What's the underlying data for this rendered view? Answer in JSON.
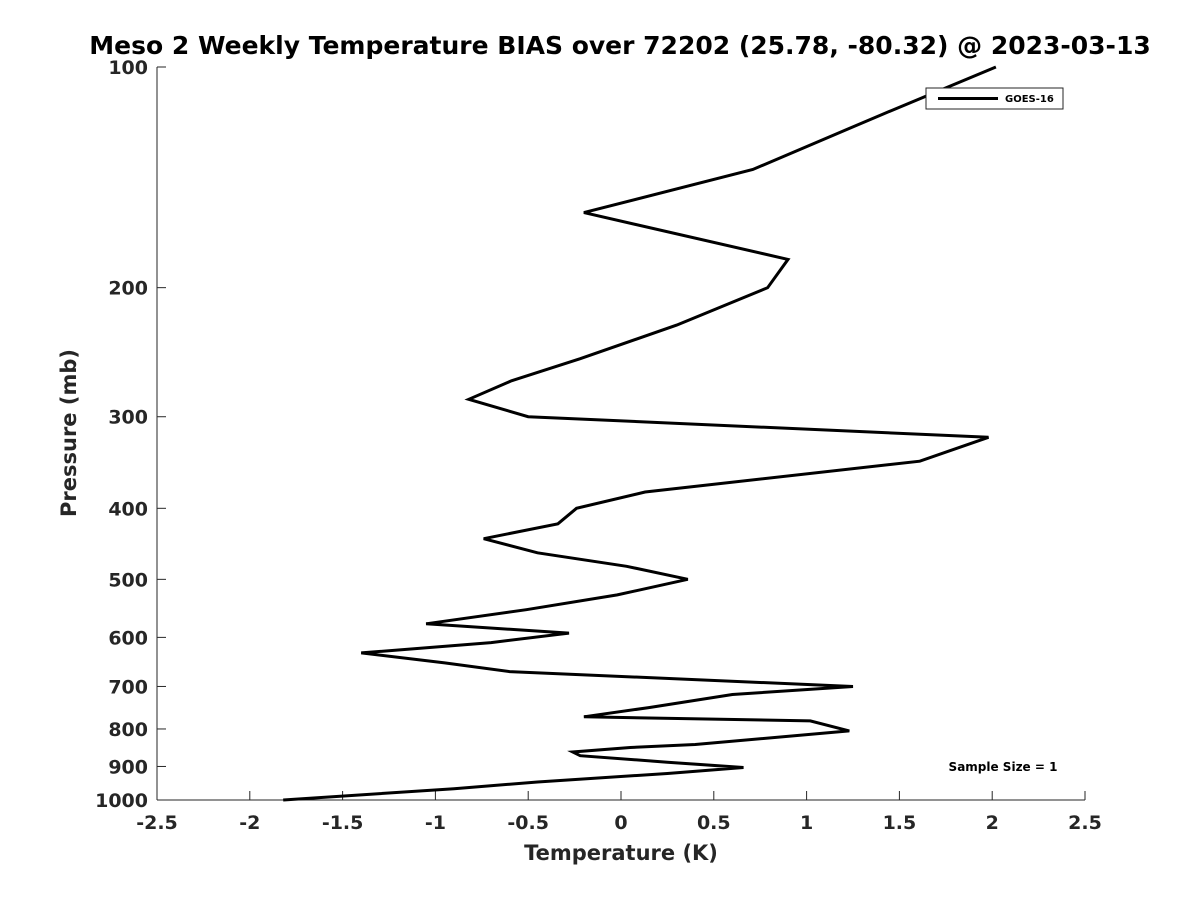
{
  "chart_data": {
    "type": "line",
    "title": "Meso 2 Weekly Temperature BIAS over 72202 (25.78, -80.32) @ 2023-03-13",
    "xlabel": "Temperature (K)",
    "ylabel": "Pressure (mb)",
    "xlim": [
      -2.5,
      2.5
    ],
    "ylim": [
      1000,
      100
    ],
    "y_scale": "log",
    "y_reversed": true,
    "grid": false,
    "x_ticks": [
      "-2.5",
      "-2",
      "-1.5",
      "-1",
      "-0.5",
      "0",
      "0.5",
      "1",
      "1.5",
      "2",
      "2.5"
    ],
    "y_ticks": [
      "100",
      "200",
      "300",
      "400",
      "500",
      "600",
      "700",
      "800",
      "900",
      "1000"
    ],
    "legend": {
      "position": "top-right",
      "entries": [
        "GOES-16"
      ]
    },
    "annotation": "Sample Size = 1",
    "series": [
      {
        "name": "GOES-16",
        "color": "#000000",
        "points": [
          [
            2.02,
            100
          ],
          [
            1.41,
            116
          ],
          [
            0.71,
            138
          ],
          [
            -0.2,
            158
          ],
          [
            0.9,
            183
          ],
          [
            0.79,
            200
          ],
          [
            0.3,
            225
          ],
          [
            -0.22,
            250
          ],
          [
            -0.59,
            268
          ],
          [
            -0.82,
            284
          ],
          [
            -0.5,
            300
          ],
          [
            1.98,
            320
          ],
          [
            1.61,
            345
          ],
          [
            0.13,
            380
          ],
          [
            -0.24,
            400
          ],
          [
            -0.34,
            420
          ],
          [
            -0.74,
            440
          ],
          [
            -0.45,
            460
          ],
          [
            0.03,
            480
          ],
          [
            0.36,
            500
          ],
          [
            -0.02,
            525
          ],
          [
            -0.51,
            550
          ],
          [
            -1.05,
            575
          ],
          [
            -0.28,
            592
          ],
          [
            -0.7,
            610
          ],
          [
            -1.4,
            630
          ],
          [
            -0.95,
            650
          ],
          [
            -0.6,
            668
          ],
          [
            1.25,
            700
          ],
          [
            0.6,
            718
          ],
          [
            0.15,
            748
          ],
          [
            -0.2,
            770
          ],
          [
            1.02,
            780
          ],
          [
            1.23,
            805
          ],
          [
            0.4,
            840
          ],
          [
            0.05,
            848
          ],
          [
            -0.26,
            860
          ],
          [
            -0.22,
            870
          ],
          [
            0.25,
            888
          ],
          [
            0.66,
            903
          ],
          [
            0.25,
            920
          ],
          [
            -0.45,
            945
          ],
          [
            -0.9,
            965
          ],
          [
            -1.82,
            1000
          ]
        ]
      }
    ]
  }
}
